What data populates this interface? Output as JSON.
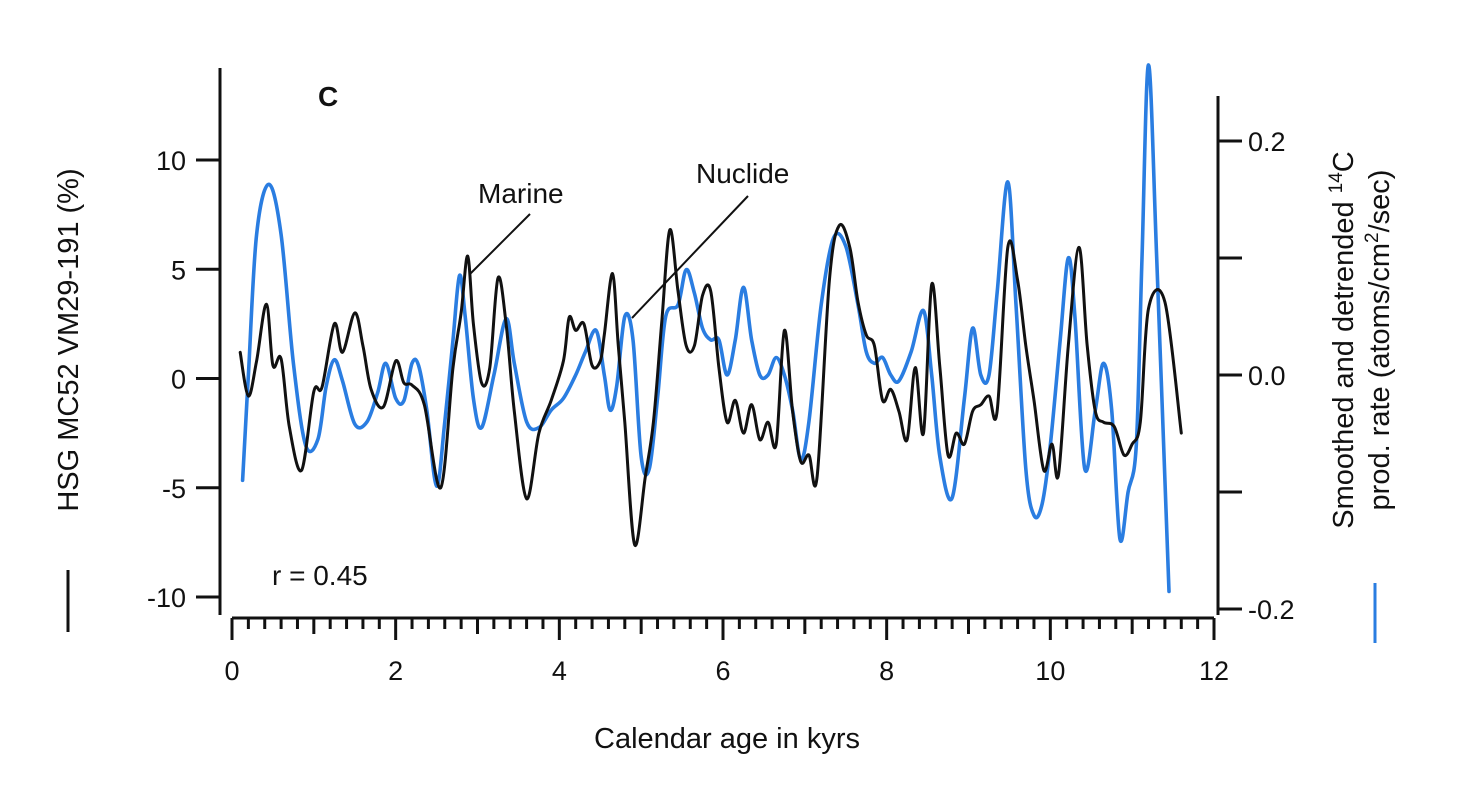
{
  "chart_data": {
    "type": "line",
    "panel_label": "C",
    "xlabel": "Calendar age in kyrs",
    "ylabel_left": "HSG MC52 VM29-191 (%)",
    "ylabel_right_line1_pre": "Smoothed and detrended ",
    "ylabel_right_line1_sup": "14",
    "ylabel_right_line1_post": "C",
    "ylabel_right_line2_pre": "prod. rate (atoms/cm",
    "ylabel_right_line2_sup": "2",
    "ylabel_right_line2_post": "/sec)",
    "xlim": [
      0,
      12
    ],
    "ylim_left": [
      -10,
      14
    ],
    "ylim_right": [
      -0.2,
      0.23
    ],
    "x_ticks": [
      0,
      2,
      4,
      6,
      8,
      10,
      12
    ],
    "x_tick_labels": [
      "0",
      "2",
      "4",
      "6",
      "8",
      "10",
      "12"
    ],
    "y_left_ticks": [
      -10,
      -5,
      0,
      5,
      10
    ],
    "y_left_tick_labels": [
      "-10",
      "-5",
      "0",
      "5",
      "10"
    ],
    "y_right_ticks": [
      -0.2,
      -0.1,
      0.0,
      0.1,
      0.2
    ],
    "y_right_tick_labels": [
      "-0.2",
      "",
      "0.0",
      "",
      "0.2"
    ],
    "annotations": {
      "marine": "Marine",
      "nuclide": "Nuclide",
      "correlation": "r = 0.45"
    },
    "series": [
      {
        "key": "marine",
        "axis": "left",
        "color": "#111111",
        "points": [
          [
            0.1,
            1.2
          ],
          [
            0.2,
            -0.8
          ],
          [
            0.3,
            0.8
          ],
          [
            0.42,
            3.4
          ],
          [
            0.5,
            0.6
          ],
          [
            0.6,
            0.9
          ],
          [
            0.7,
            -2.2
          ],
          [
            0.85,
            -4.2
          ],
          [
            1.0,
            -0.6
          ],
          [
            1.1,
            -0.4
          ],
          [
            1.25,
            2.5
          ],
          [
            1.35,
            1.2
          ],
          [
            1.5,
            3.0
          ],
          [
            1.6,
            1.5
          ],
          [
            1.7,
            -0.5
          ],
          [
            1.85,
            -1.3
          ],
          [
            2.0,
            0.8
          ],
          [
            2.1,
            -0.2
          ],
          [
            2.2,
            -0.3
          ],
          [
            2.35,
            -1.2
          ],
          [
            2.55,
            -5.0
          ],
          [
            2.7,
            0.5
          ],
          [
            2.8,
            3.0
          ],
          [
            2.88,
            5.6
          ],
          [
            2.95,
            2.5
          ],
          [
            3.05,
            -0.2
          ],
          [
            3.15,
            0.5
          ],
          [
            3.25,
            4.6
          ],
          [
            3.35,
            2.5
          ],
          [
            3.45,
            -1.5
          ],
          [
            3.6,
            -5.5
          ],
          [
            3.75,
            -2.5
          ],
          [
            3.9,
            -1.0
          ],
          [
            4.05,
            0.8
          ],
          [
            4.12,
            2.8
          ],
          [
            4.2,
            2.2
          ],
          [
            4.3,
            2.5
          ],
          [
            4.4,
            0.6
          ],
          [
            4.5,
            0.8
          ],
          [
            4.55,
            2.0
          ],
          [
            4.65,
            4.8
          ],
          [
            4.72,
            1.5
          ],
          [
            4.8,
            -2.0
          ],
          [
            4.92,
            -7.6
          ],
          [
            5.05,
            -4.5
          ],
          [
            5.15,
            -2.0
          ],
          [
            5.25,
            2.5
          ],
          [
            5.35,
            6.8
          ],
          [
            5.45,
            4.0
          ],
          [
            5.55,
            1.5
          ],
          [
            5.65,
            1.5
          ],
          [
            5.75,
            3.8
          ],
          [
            5.85,
            4.0
          ],
          [
            5.95,
            0.5
          ],
          [
            6.05,
            -2.0
          ],
          [
            6.15,
            -1.0
          ],
          [
            6.25,
            -2.5
          ],
          [
            6.35,
            -1.2
          ],
          [
            6.45,
            -2.8
          ],
          [
            6.55,
            -2.0
          ],
          [
            6.65,
            -3.0
          ],
          [
            6.75,
            2.2
          ],
          [
            6.85,
            -1.5
          ],
          [
            6.95,
            -3.8
          ],
          [
            7.05,
            -3.5
          ],
          [
            7.15,
            -4.5
          ],
          [
            7.3,
            4.5
          ],
          [
            7.42,
            7.0
          ],
          [
            7.55,
            6.0
          ],
          [
            7.65,
            3.5
          ],
          [
            7.75,
            2.0
          ],
          [
            7.85,
            1.5
          ],
          [
            7.95,
            -1.0
          ],
          [
            8.05,
            -0.5
          ],
          [
            8.15,
            -1.5
          ],
          [
            8.25,
            -2.8
          ],
          [
            8.35,
            0.5
          ],
          [
            8.45,
            -2.5
          ],
          [
            8.55,
            4.3
          ],
          [
            8.65,
            0.5
          ],
          [
            8.75,
            -3.5
          ],
          [
            8.85,
            -2.5
          ],
          [
            8.95,
            -3.0
          ],
          [
            9.05,
            -1.5
          ],
          [
            9.15,
            -1.2
          ],
          [
            9.25,
            -0.8
          ],
          [
            9.35,
            -1.5
          ],
          [
            9.48,
            6.0
          ],
          [
            9.6,
            4.5
          ],
          [
            9.7,
            1.5
          ],
          [
            9.8,
            -1.0
          ],
          [
            9.92,
            -4.2
          ],
          [
            10.02,
            -3.0
          ],
          [
            10.1,
            -4.4
          ],
          [
            10.22,
            1.5
          ],
          [
            10.35,
            6.0
          ],
          [
            10.45,
            1.5
          ],
          [
            10.55,
            -1.5
          ],
          [
            10.65,
            -2.0
          ],
          [
            10.78,
            -2.2
          ],
          [
            10.9,
            -3.5
          ],
          [
            11.0,
            -3.0
          ],
          [
            11.1,
            -2.0
          ],
          [
            11.2,
            3.2
          ],
          [
            11.4,
            3.5
          ],
          [
            11.6,
            -2.5
          ]
        ]
      },
      {
        "key": "nuclide",
        "axis": "right",
        "color": "#2a7de1",
        "points": [
          [
            0.13,
            -0.09
          ],
          [
            0.2,
            0.0
          ],
          [
            0.3,
            0.12
          ],
          [
            0.45,
            0.163
          ],
          [
            0.6,
            0.12
          ],
          [
            0.75,
            0.01
          ],
          [
            0.9,
            -0.06
          ],
          [
            1.05,
            -0.055
          ],
          [
            1.15,
            -0.01
          ],
          [
            1.25,
            0.013
          ],
          [
            1.35,
            -0.005
          ],
          [
            1.5,
            -0.042
          ],
          [
            1.65,
            -0.04
          ],
          [
            1.78,
            -0.015
          ],
          [
            1.88,
            0.01
          ],
          [
            2.0,
            -0.02
          ],
          [
            2.1,
            -0.022
          ],
          [
            2.2,
            0.01
          ],
          [
            2.28,
            0.008
          ],
          [
            2.38,
            -0.03
          ],
          [
            2.5,
            -0.095
          ],
          [
            2.6,
            -0.04
          ],
          [
            2.7,
            0.03
          ],
          [
            2.78,
            0.085
          ],
          [
            2.85,
            0.05
          ],
          [
            2.95,
            -0.02
          ],
          [
            3.05,
            -0.045
          ],
          [
            3.2,
            0.0
          ],
          [
            3.35,
            0.048
          ],
          [
            3.45,
            0.01
          ],
          [
            3.6,
            -0.04
          ],
          [
            3.75,
            -0.045
          ],
          [
            3.9,
            -0.03
          ],
          [
            4.05,
            -0.02
          ],
          [
            4.2,
            0.0
          ],
          [
            4.32,
            0.02
          ],
          [
            4.45,
            0.038
          ],
          [
            4.55,
            0.0
          ],
          [
            4.62,
            -0.03
          ],
          [
            4.7,
            -0.01
          ],
          [
            4.8,
            0.05
          ],
          [
            4.9,
            0.03
          ],
          [
            5.0,
            -0.07
          ],
          [
            5.1,
            -0.08
          ],
          [
            5.2,
            -0.02
          ],
          [
            5.3,
            0.05
          ],
          [
            5.45,
            0.06
          ],
          [
            5.55,
            0.09
          ],
          [
            5.65,
            0.07
          ],
          [
            5.75,
            0.04
          ],
          [
            5.85,
            0.03
          ],
          [
            5.95,
            0.03
          ],
          [
            6.05,
            0.0
          ],
          [
            6.15,
            0.03
          ],
          [
            6.25,
            0.075
          ],
          [
            6.35,
            0.03
          ],
          [
            6.45,
            0.0
          ],
          [
            6.55,
            0.0
          ],
          [
            6.65,
            0.015
          ],
          [
            6.75,
            0.0
          ],
          [
            6.85,
            -0.03
          ],
          [
            6.95,
            -0.072
          ],
          [
            7.05,
            -0.04
          ],
          [
            7.2,
            0.06
          ],
          [
            7.35,
            0.117
          ],
          [
            7.5,
            0.11
          ],
          [
            7.65,
            0.06
          ],
          [
            7.75,
            0.02
          ],
          [
            7.85,
            0.01
          ],
          [
            7.95,
            0.015
          ],
          [
            8.05,
            0.0
          ],
          [
            8.15,
            -0.005
          ],
          [
            8.3,
            0.02
          ],
          [
            8.45,
            0.055
          ],
          [
            8.55,
            0.0
          ],
          [
            8.65,
            -0.07
          ],
          [
            8.8,
            -0.105
          ],
          [
            8.95,
            -0.02
          ],
          [
            9.05,
            0.04
          ],
          [
            9.15,
            0.0
          ],
          [
            9.25,
            0.0
          ],
          [
            9.35,
            0.07
          ],
          [
            9.48,
            0.165
          ],
          [
            9.58,
            0.06
          ],
          [
            9.7,
            -0.08
          ],
          [
            9.8,
            -0.12
          ],
          [
            9.9,
            -0.11
          ],
          [
            10.0,
            -0.06
          ],
          [
            10.12,
            0.03
          ],
          [
            10.22,
            0.1
          ],
          [
            10.3,
            0.05
          ],
          [
            10.42,
            -0.08
          ],
          [
            10.55,
            -0.03
          ],
          [
            10.65,
            0.01
          ],
          [
            10.75,
            -0.03
          ],
          [
            10.85,
            -0.14
          ],
          [
            10.95,
            -0.1
          ],
          [
            11.05,
            -0.06
          ],
          [
            11.12,
            0.1
          ],
          [
            11.2,
            0.265
          ],
          [
            11.3,
            0.1
          ],
          [
            11.45,
            -0.185
          ]
        ]
      }
    ]
  }
}
